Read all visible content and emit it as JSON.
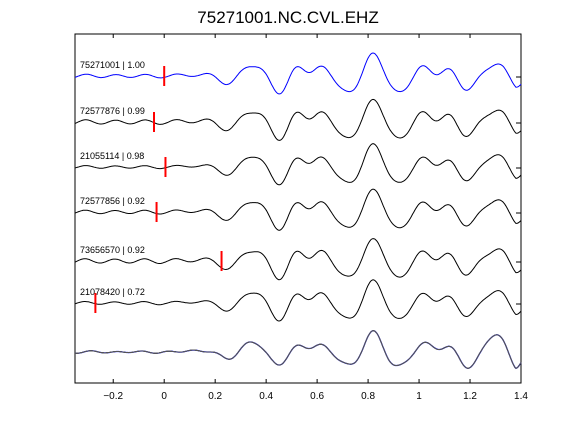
{
  "chart_data": {
    "type": "line",
    "title": "75271001.NC.CVL.EHZ",
    "xlabel": "",
    "ylabel": "",
    "xlim": [
      -0.35,
      1.4
    ],
    "xticks": [
      -0.2,
      0,
      0.2,
      0.4,
      0.6,
      0.8,
      1,
      1.2,
      1.4
    ],
    "xtick_labels": [
      "−0.2",
      "0",
      "0.2",
      "0.4",
      "0.6",
      "0.8",
      "1",
      "1.2",
      "1.4"
    ],
    "grid": false,
    "colors": {
      "reference_trace": "#0000ff",
      "trace": "#000000",
      "pick_marker": "#ff0000"
    },
    "traces": [
      {
        "label": "75271001 | 1.00",
        "event_id": "75271001",
        "correlation": 1.0,
        "pick_time": 0.0,
        "color": "#0000ff"
      },
      {
        "label": "72577876 | 0.99",
        "event_id": "72577876",
        "correlation": 0.99,
        "pick_time": -0.04,
        "color": "#000000"
      },
      {
        "label": "21055114 | 0.98",
        "event_id": "21055114",
        "correlation": 0.98,
        "pick_time": 0.005,
        "color": "#000000"
      },
      {
        "label": "72577856 | 0.92",
        "event_id": "72577856",
        "correlation": 0.92,
        "pick_time": -0.03,
        "color": "#000000"
      },
      {
        "label": "73656570 | 0.92",
        "event_id": "73656570",
        "correlation": 0.92,
        "pick_time": 0.225,
        "color": "#000000"
      },
      {
        "label": "21078420 | 0.72",
        "event_id": "21078420",
        "correlation": 0.72,
        "pick_time": -0.27,
        "color": "#000000"
      }
    ],
    "stack": {
      "description_shown": false,
      "traces_overlaid": 6
    }
  }
}
